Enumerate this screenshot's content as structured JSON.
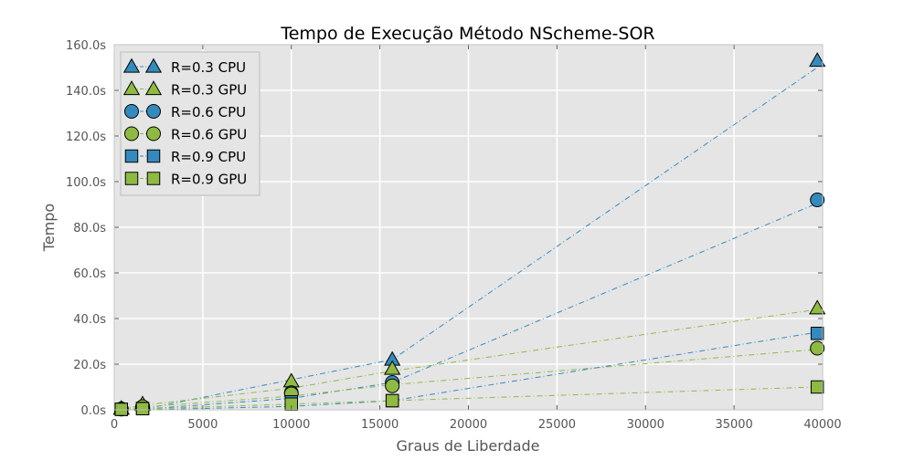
{
  "chart_data": {
    "type": "scatter",
    "title": "Tempo de Execução Método NScheme-SOR",
    "xlabel": "Graus de Liberdade",
    "ylabel": "Tempo",
    "xlim": [
      0,
      40000
    ],
    "ylim": [
      0,
      160
    ],
    "x_ticks": [
      {
        "value": 0,
        "label": "0"
      },
      {
        "value": 5000,
        "label": "5000"
      },
      {
        "value": 10000,
        "label": "10000"
      },
      {
        "value": 15000,
        "label": "15000"
      },
      {
        "value": 20000,
        "label": "20000"
      },
      {
        "value": 25000,
        "label": "25000"
      },
      {
        "value": 30000,
        "label": "30000"
      },
      {
        "value": 35000,
        "label": "35000"
      },
      {
        "value": 40000,
        "label": "40000"
      }
    ],
    "y_ticks": [
      {
        "value": 0,
        "label": "0.0s"
      },
      {
        "value": 20,
        "label": "20.0s"
      },
      {
        "value": 40,
        "label": "40.0s"
      },
      {
        "value": 60,
        "label": "60.0s"
      },
      {
        "value": 80,
        "label": "80.0s"
      },
      {
        "value": 100,
        "label": "100.0s"
      },
      {
        "value": 120,
        "label": "120.0s"
      },
      {
        "value": 140,
        "label": "140.0s"
      },
      {
        "value": 160,
        "label": "160.0s"
      }
    ],
    "grid": true,
    "legend_position": "top-left",
    "colors": {
      "cpu": "#348abd",
      "gpu": "#8eba42",
      "plot_background": "#e5e5e5",
      "grid": "#ffffff",
      "edge": "#000000"
    },
    "series": [
      {
        "name": "R=0.3 CPU",
        "marker": "triangle",
        "color": "#348abd",
        "points": [
          [
            400,
            0.5
          ],
          [
            1600,
            2.2
          ],
          [
            15700,
            22.0
          ],
          [
            39700,
            153.0
          ]
        ],
        "fit": [
          [
            400,
            0.0
          ],
          [
            1600,
            0.2
          ],
          [
            15700,
            22.0
          ],
          [
            39700,
            150.0
          ]
        ]
      },
      {
        "name": "R=0.3 GPU",
        "marker": "triangle",
        "color": "#8eba42",
        "points": [
          [
            400,
            0.6
          ],
          [
            1600,
            2.5
          ],
          [
            10000,
            12.5
          ],
          [
            15700,
            18.0
          ],
          [
            39700,
            44.5
          ]
        ],
        "fit": [
          [
            400,
            0.4
          ],
          [
            1600,
            2.0
          ],
          [
            10000,
            9.5
          ],
          [
            15700,
            17.0
          ],
          [
            39700,
            44.0
          ]
        ]
      },
      {
        "name": "R=0.6 CPU",
        "marker": "circle",
        "color": "#348abd",
        "points": [
          [
            400,
            0.3
          ],
          [
            1600,
            1.2
          ],
          [
            10000,
            7.5
          ],
          [
            15700,
            12.0
          ],
          [
            39700,
            92.0
          ]
        ],
        "fit": [
          [
            400,
            0.0
          ],
          [
            1600,
            0.3
          ],
          [
            10000,
            5.0
          ],
          [
            15700,
            12.0
          ],
          [
            39700,
            90.5
          ]
        ]
      },
      {
        "name": "R=0.6 GPU",
        "marker": "circle",
        "color": "#8eba42",
        "points": [
          [
            400,
            0.4
          ],
          [
            1600,
            1.4
          ],
          [
            10000,
            7.0
          ],
          [
            15700,
            10.5
          ],
          [
            39700,
            27.0
          ]
        ],
        "fit": [
          [
            400,
            0.2
          ],
          [
            1600,
            1.2
          ],
          [
            10000,
            6.0
          ],
          [
            15700,
            11.0
          ],
          [
            39700,
            26.5
          ]
        ]
      },
      {
        "name": "R=0.9 CPU",
        "marker": "square",
        "color": "#348abd",
        "points": [
          [
            400,
            0.2
          ],
          [
            1600,
            0.6
          ],
          [
            10000,
            3.5
          ],
          [
            15700,
            4.0
          ],
          [
            39700,
            33.5
          ]
        ],
        "fit": [
          [
            400,
            0.0
          ],
          [
            1600,
            0.0
          ],
          [
            10000,
            1.5
          ],
          [
            15700,
            4.0
          ],
          [
            39700,
            34.0
          ]
        ]
      },
      {
        "name": "R=0.9 GPU",
        "marker": "square",
        "color": "#8eba42",
        "points": [
          [
            400,
            0.2
          ],
          [
            1600,
            0.5
          ],
          [
            10000,
            2.5
          ],
          [
            15700,
            4.0
          ],
          [
            39700,
            10.0
          ]
        ],
        "fit": [
          [
            400,
            0.1
          ],
          [
            1600,
            0.4
          ],
          [
            10000,
            2.5
          ],
          [
            15700,
            4.0
          ],
          [
            39700,
            10.0
          ]
        ]
      }
    ]
  }
}
